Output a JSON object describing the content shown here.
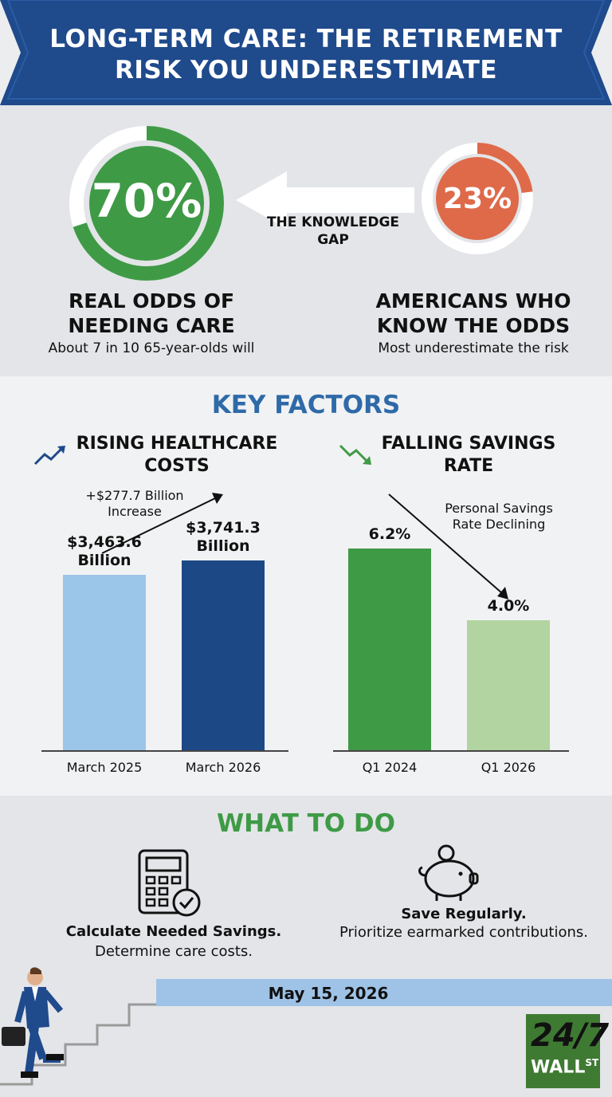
{
  "title": "LONG-TERM CARE: THE RETIREMENT RISK YOU UNDERESTIMATE",
  "colors": {
    "navy": "#1f4a8c",
    "green": "#3f9a46",
    "orange": "#de6a4a",
    "light_blue": "#9cc5ea",
    "dark_blue": "#1c4886",
    "light_green": "#b2d4a0",
    "section_title_blue": "#2f6aa8",
    "section_title_green": "#3f9a46"
  },
  "stats": {
    "real_odds": {
      "value": "70%",
      "heading": "REAL ODDS OF NEEDING CARE",
      "sub": "About 7 in 10 65-year-olds will",
      "fraction": 0.7
    },
    "knowledge_gap": "THE KNOWLEDGE GAP",
    "aware": {
      "value": "23%",
      "heading": "AMERICANS WHO KNOW THE ODDS",
      "sub": "Most underestimate the risk",
      "fraction": 0.23
    }
  },
  "key_factors": {
    "title": "KEY FACTORS",
    "healthcare": {
      "heading": "RISING HEALTHCARE COSTS",
      "icon": "trend-up-icon",
      "note": "+$277.7 Billion Increase"
    },
    "savings": {
      "heading": "FALLING SAVINGS RATE",
      "icon": "trend-down-icon",
      "note": "Personal Savings Rate Declining"
    }
  },
  "chart_data": [
    {
      "type": "bar",
      "categories": [
        "March 2025",
        "March 2026"
      ],
      "values": [
        3463.6,
        3741.3
      ],
      "value_labels": [
        "$3,463.6 Billion",
        "$3,741.3 Billion"
      ],
      "title": "RISING HEALTHCARE COSTS",
      "colors": [
        "#9cc5ea",
        "#1c4886"
      ]
    },
    {
      "type": "bar",
      "categories": [
        "Q1 2024",
        "Q1 2026"
      ],
      "values": [
        6.2,
        4.0
      ],
      "value_labels": [
        "6.2%",
        "4.0%"
      ],
      "title": "FALLING SAVINGS RATE",
      "colors": [
        "#3f9a46",
        "#b2d4a0"
      ]
    }
  ],
  "what_to_do": {
    "title": "WHAT TO DO",
    "calculate": {
      "heading": "Calculate Needed Savings.",
      "sub": "Determine care costs.",
      "icon": "calculator-icon"
    },
    "save": {
      "heading": "Save Regularly.",
      "sub": "Prioritize earmarked contributions.",
      "icon": "piggy-bank-icon"
    }
  },
  "date": "May 15, 2026",
  "logo": {
    "main": "24/7",
    "sub": "WALL",
    "sup": "ST"
  }
}
